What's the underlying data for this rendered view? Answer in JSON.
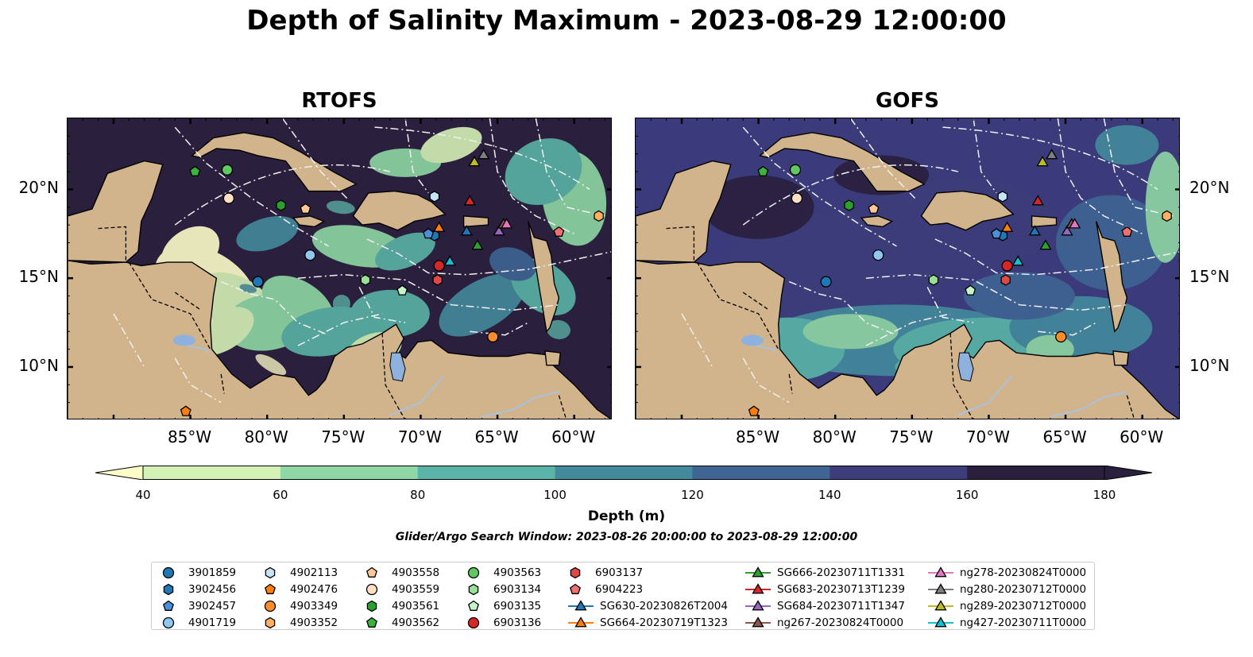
{
  "title": "Depth of Salinity Maximum - 2023-08-29 12:00:00",
  "panels": [
    {
      "title": "RTOFS",
      "ocean_base": "#2a1f3d"
    },
    {
      "title": "GOFS",
      "ocean_base": "#3b3a7a"
    }
  ],
  "x_ticks": [
    "85°W",
    "80°W",
    "75°W",
    "70°W",
    "65°W",
    "60°W"
  ],
  "y_ticks": [
    "20°N",
    "15°N",
    "10°N"
  ],
  "colorbar": {
    "label": "Depth (m)",
    "ticks": [
      "40",
      "60",
      "80",
      "100",
      "120",
      "140",
      "160",
      "180"
    ],
    "colors": [
      "#fdfdc9",
      "#d4f1b6",
      "#8fd7a4",
      "#5ab4a8",
      "#438a9c",
      "#3e6594",
      "#3e3d7b",
      "#2a1f3d"
    ]
  },
  "search_window": "Glider/Argo Search Window: 2023-08-26 20:00:00 to 2023-08-29 12:00:00",
  "colors": {
    "land": "#d2b48c",
    "lake": "#8eb1de",
    "river": "#a9c2de"
  },
  "legend": [
    {
      "label": "3901859",
      "marker": "circle",
      "color": "#1f77b4"
    },
    {
      "label": "3902456",
      "marker": "hexagon",
      "color": "#1f77b4"
    },
    {
      "label": "3902457",
      "marker": "pentagon",
      "color": "#4a90d9"
    },
    {
      "label": "4901719",
      "marker": "circle",
      "color": "#8fc7ee"
    },
    {
      "label": "4902113",
      "marker": "hexagon",
      "color": "#c6e3f7"
    },
    {
      "label": "4902476",
      "marker": "pentagon",
      "color": "#ff7f0e"
    },
    {
      "label": "4903349",
      "marker": "circle",
      "color": "#ff8c2b"
    },
    {
      "label": "4903352",
      "marker": "hexagon",
      "color": "#ffb061"
    },
    {
      "label": "4903558",
      "marker": "pentagon",
      "color": "#ffc89a"
    },
    {
      "label": "4903559",
      "marker": "circle",
      "color": "#ffe0c4"
    },
    {
      "label": "4903561",
      "marker": "hexagon",
      "color": "#2ca02c"
    },
    {
      "label": "4903562",
      "marker": "pentagon",
      "color": "#3cb43c"
    },
    {
      "label": "4903563",
      "marker": "circle",
      "color": "#60c860"
    },
    {
      "label": "6903134",
      "marker": "hexagon",
      "color": "#98e098"
    },
    {
      "label": "6903135",
      "marker": "pentagon",
      "color": "#c8f5c8"
    },
    {
      "label": "6903136",
      "marker": "circle",
      "color": "#d62728"
    },
    {
      "label": "6903137",
      "marker": "hexagon",
      "color": "#e04848"
    },
    {
      "label": "6904223",
      "marker": "pentagon",
      "color": "#f07070"
    },
    {
      "label": "SG630-20230826T2004",
      "marker": "triangle-line",
      "color": "#1f77b4"
    },
    {
      "label": "SG664-20230719T1323",
      "marker": "triangle-line",
      "color": "#ff7f0e"
    },
    {
      "label": "SG666-20230711T1331",
      "marker": "triangle-line",
      "color": "#2ca02c"
    },
    {
      "label": "SG683-20230713T1239",
      "marker": "triangle-line",
      "color": "#d62728"
    },
    {
      "label": "SG684-20230711T1347",
      "marker": "triangle-line",
      "color": "#9467bd"
    },
    {
      "label": "ng267-20230824T0000",
      "marker": "triangle-line",
      "color": "#8c564b"
    },
    {
      "label": "ng278-20230824T0000",
      "marker": "triangle-line",
      "color": "#e377c2"
    },
    {
      "label": "ng280-20230712T0000",
      "marker": "triangle-line",
      "color": "#7f7f7f"
    },
    {
      "label": "ng289-20230712T0000",
      "marker": "triangle-line",
      "color": "#bcbd22"
    },
    {
      "label": "ng427-20230711T0000",
      "marker": "triangle-line",
      "color": "#17becf"
    }
  ],
  "markers": [
    {
      "id": "3901859",
      "lon": -80.6,
      "lat": 14.8
    },
    {
      "id": "3902456",
      "lon": -69.1,
      "lat": 17.4
    },
    {
      "id": "3902457",
      "lon": -69.5,
      "lat": 17.5
    },
    {
      "id": "4901719",
      "lon": -77.2,
      "lat": 16.3
    },
    {
      "id": "4902113",
      "lon": -69.1,
      "lat": 19.6
    },
    {
      "id": "4902476",
      "lon": -85.3,
      "lat": 7.5
    },
    {
      "id": "4903349",
      "lon": -65.3,
      "lat": 11.7
    },
    {
      "id": "4903352",
      "lon": -58.4,
      "lat": 18.5
    },
    {
      "id": "4903558",
      "lon": -77.5,
      "lat": 18.9
    },
    {
      "id": "4903559",
      "lon": -82.5,
      "lat": 19.5
    },
    {
      "id": "4903561",
      "lon": -79.1,
      "lat": 19.1
    },
    {
      "id": "4903562",
      "lon": -84.7,
      "lat": 21.0
    },
    {
      "id": "4903563",
      "lon": -82.6,
      "lat": 21.1
    },
    {
      "id": "6903134",
      "lon": -73.6,
      "lat": 14.9
    },
    {
      "id": "6903135",
      "lon": -71.2,
      "lat": 14.3
    },
    {
      "id": "6903136",
      "lon": -68.8,
      "lat": 15.7
    },
    {
      "id": "6903137",
      "lon": -68.9,
      "lat": 14.9
    },
    {
      "id": "6904223",
      "lon": -61.0,
      "lat": 17.6
    },
    {
      "id": "SG630-20230826T2004",
      "lon": -67.0,
      "lat": 17.6
    },
    {
      "id": "SG664-20230719T1323",
      "lon": -68.8,
      "lat": 17.8
    },
    {
      "id": "SG666-20230711T1331",
      "lon": -66.3,
      "lat": 16.8
    },
    {
      "id": "SG683-20230713T1239",
      "lon": -66.8,
      "lat": 19.3
    },
    {
      "id": "SG684-20230711T1347",
      "lon": -64.9,
      "lat": 17.6
    },
    {
      "id": "ng267-20230824T0000",
      "lon": -64.6,
      "lat": 18.0
    },
    {
      "id": "ng278-20230824T0000",
      "lon": -64.4,
      "lat": 18.0
    },
    {
      "id": "ng280-20230712T0000",
      "lon": -65.9,
      "lat": 21.9
    },
    {
      "id": "ng289-20230712T0000",
      "lon": -66.5,
      "lat": 21.5
    },
    {
      "id": "ng427-20230711T0000",
      "lon": -68.1,
      "lat": 15.9
    }
  ]
}
